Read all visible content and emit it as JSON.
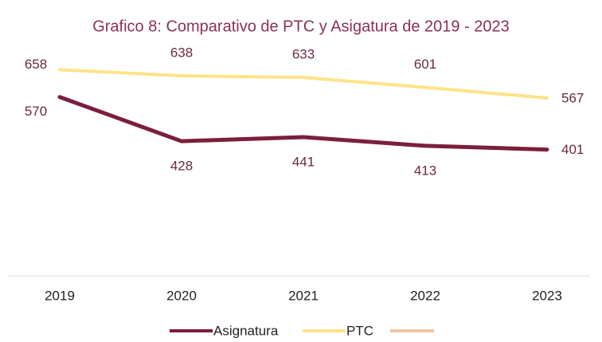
{
  "chart_data": {
    "type": "line",
    "title": "Grafico 8: Comparativo de PTC y Asigatura de 2019 - 2023",
    "categories": [
      "2019",
      "2020",
      "2021",
      "2022",
      "2023"
    ],
    "series": [
      {
        "name": "Asignatura",
        "color": "#7b1f3a",
        "values": [
          570,
          428,
          441,
          413,
          401
        ]
      },
      {
        "name": "PTC",
        "color": "#ffe38a",
        "values": [
          658,
          638,
          633,
          601,
          567
        ]
      }
    ],
    "ylim": [
      0,
      700
    ]
  }
}
